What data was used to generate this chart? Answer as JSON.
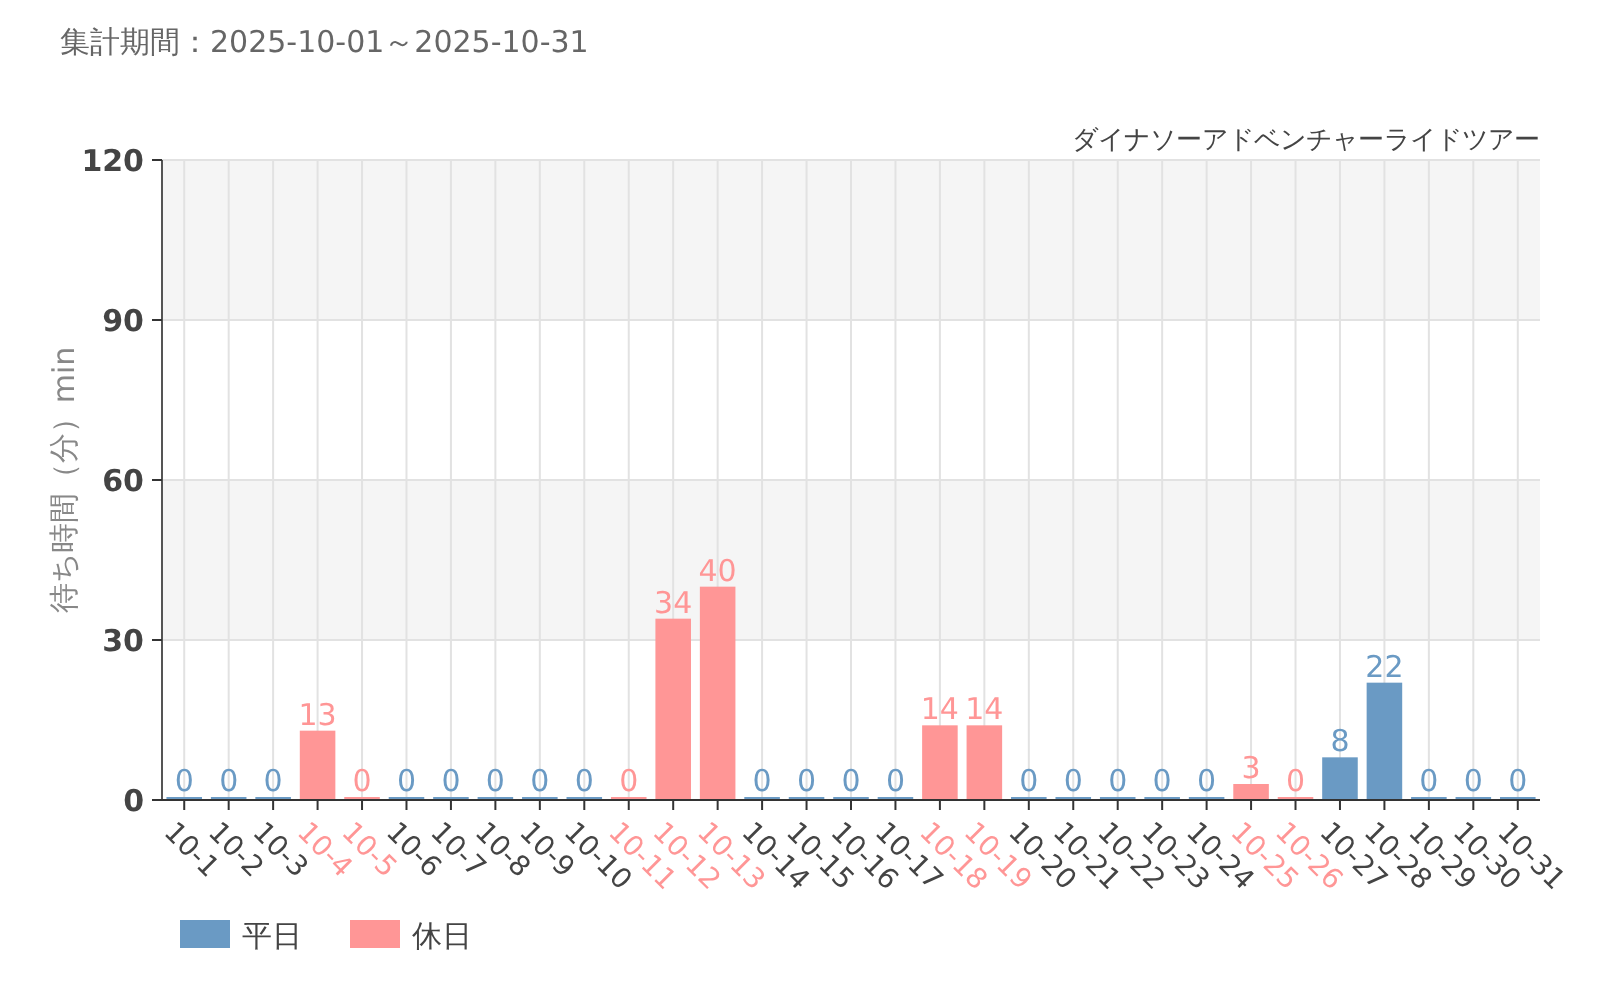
{
  "chart_data": {
    "type": "bar",
    "title": "集計期間：2025-10-01～2025-10-31",
    "subtitle": "ダイナソーアドベンチャーライドツアー",
    "ylabel": "待ち時間（分）min",
    "categories": [
      "10-1",
      "10-2",
      "10-3",
      "10-4",
      "10-5",
      "10-6",
      "10-7",
      "10-8",
      "10-9",
      "10-10",
      "10-11",
      "10-12",
      "10-13",
      "10-14",
      "10-15",
      "10-16",
      "10-17",
      "10-18",
      "10-19",
      "10-20",
      "10-21",
      "10-22",
      "10-23",
      "10-24",
      "10-25",
      "10-26",
      "10-27",
      "10-28",
      "10-29",
      "10-30",
      "10-31"
    ],
    "series": [
      {
        "name": "平日",
        "color": "#6a9ac4",
        "values": [
          0,
          0,
          0,
          null,
          null,
          0,
          0,
          0,
          0,
          0,
          null,
          null,
          null,
          0,
          0,
          0,
          0,
          null,
          null,
          0,
          0,
          0,
          0,
          0,
          null,
          null,
          8,
          22,
          0,
          0,
          0
        ]
      },
      {
        "name": "休日",
        "color": "#ff9696",
        "values": [
          null,
          null,
          null,
          13,
          0,
          null,
          null,
          null,
          null,
          null,
          0,
          34,
          40,
          null,
          null,
          null,
          null,
          14,
          14,
          null,
          null,
          null,
          null,
          null,
          3,
          0,
          null,
          null,
          null,
          null,
          null
        ]
      }
    ],
    "stacked": true,
    "ylim": [
      0,
      120
    ],
    "yticks": [
      0,
      30,
      60,
      90,
      120
    ],
    "grid": true,
    "bands": [
      {
        "axis": "y",
        "from": 90,
        "to": 120,
        "color": "#f5f5f5"
      },
      {
        "axis": "y",
        "from": 30,
        "to": 60,
        "color": "#f5f5f5"
      }
    ],
    "data_labels": true,
    "legend": "bottom left"
  }
}
